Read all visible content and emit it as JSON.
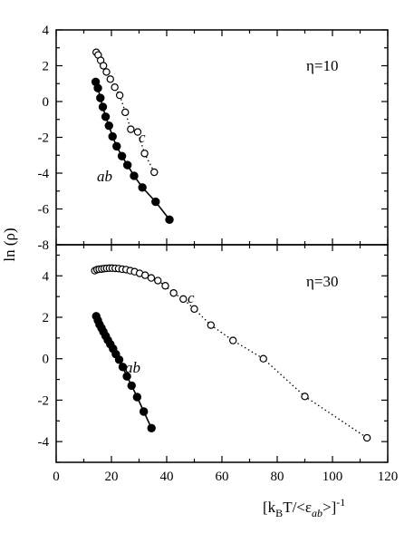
{
  "chart_data": {
    "type": "scatter",
    "ylabel": "ln (ρ)",
    "xlabel": {
      "base": "[k",
      "sub1": "B",
      "mid": "T/<ε",
      "sub2": "ab",
      "end": ">]",
      "sup": "-1"
    },
    "xlim": [
      0,
      120
    ],
    "xticks": [
      "0",
      "20",
      "40",
      "60",
      "80",
      "100",
      "120"
    ],
    "grid": false,
    "panels": [
      {
        "annotation": "η=10",
        "ylim": [
          -8,
          4
        ],
        "yticks": [
          "-8",
          "-6",
          "-4",
          "-2",
          "0",
          "2",
          "4"
        ],
        "series": [
          {
            "name": "c",
            "marker": "open-circle",
            "line": "dotted",
            "x": [
              14.5,
              15.2,
              16.1,
              17.1,
              18.2,
              19.6,
              21.2,
              23.0,
              25.0,
              27.0,
              29.5,
              32.0,
              35.5
            ],
            "y": [
              2.75,
              2.6,
              2.3,
              2.0,
              1.65,
              1.25,
              0.8,
              0.35,
              -0.6,
              -1.55,
              -1.7,
              -2.9,
              -3.95
            ]
          },
          {
            "name": "ab",
            "marker": "filled-circle",
            "line": "solid",
            "x": [
              14.3,
              15.1,
              16.0,
              16.9,
              17.9,
              19.1,
              20.4,
              21.9,
              23.8,
              25.8,
              28.2,
              31.2,
              36.0,
              41.0
            ],
            "y": [
              1.1,
              0.75,
              0.2,
              -0.3,
              -0.85,
              -1.35,
              -1.95,
              -2.5,
              -3.05,
              -3.55,
              -4.15,
              -4.8,
              -5.6,
              -6.6
            ]
          }
        ]
      },
      {
        "annotation": "η=30",
        "ylim": [
          -5,
          5.5
        ],
        "yticks": [
          "-4",
          "-2",
          "0",
          "2",
          "4"
        ],
        "series": [
          {
            "name": "c",
            "marker": "open-circle",
            "line": "dotted",
            "x": [
              14.0,
              14.8,
              15.6,
              16.5,
              17.4,
              18.3,
              19.3,
              20.3,
              21.4,
              22.6,
              23.9,
              25.3,
              26.8,
              28.4,
              30.2,
              32.2,
              34.4,
              36.8,
              39.5,
              42.5,
              46.0,
              50.0,
              56.0,
              64.0,
              75.0,
              90.0,
              112.5
            ],
            "y": [
              4.25,
              4.3,
              4.32,
              4.33,
              4.35,
              4.36,
              4.37,
              4.37,
              4.36,
              4.35,
              4.32,
              4.3,
              4.25,
              4.2,
              4.12,
              4.03,
              3.9,
              3.77,
              3.52,
              3.17,
              2.88,
              2.4,
              1.62,
              0.88,
              0.0,
              -1.82,
              -3.82
            ]
          },
          {
            "name": "ab",
            "marker": "filled-circle",
            "line": "solid",
            "x": [
              14.5,
              15.1,
              15.7,
              16.4,
              17.1,
              17.9,
              18.7,
              19.6,
              20.6,
              21.6,
              22.8,
              24.1,
              25.6,
              27.3,
              29.3,
              31.7,
              34.5
            ],
            "y": [
              2.05,
              1.85,
              1.65,
              1.48,
              1.3,
              1.1,
              0.9,
              0.7,
              0.48,
              0.22,
              -0.05,
              -0.4,
              -0.85,
              -1.3,
              -1.85,
              -2.55,
              -3.35
            ]
          }
        ]
      }
    ]
  }
}
